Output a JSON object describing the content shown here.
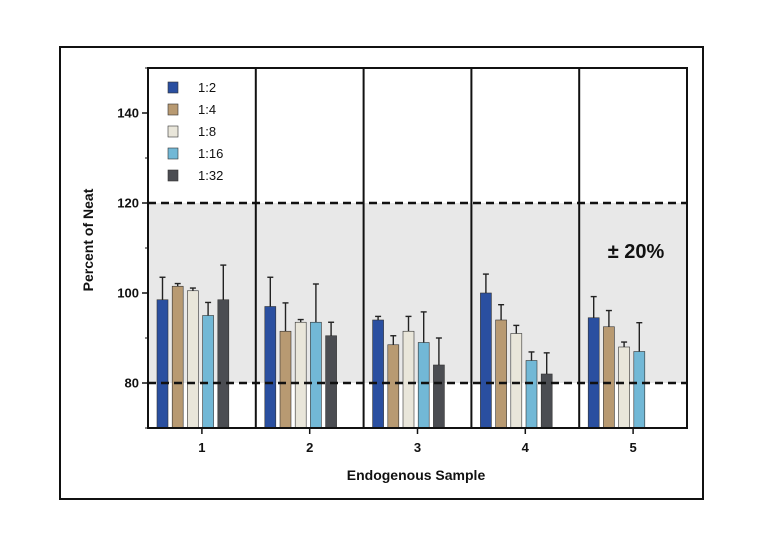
{
  "chart_data": {
    "type": "bar",
    "title": "",
    "xlabel": "Endogenous Sample",
    "ylabel": "Percent of Neat",
    "categories": [
      "1",
      "2",
      "3",
      "4",
      "5"
    ],
    "ylim": [
      70,
      150
    ],
    "yticks": [
      80,
      100,
      120,
      140
    ],
    "grid": false,
    "legend_position": "top-left",
    "band": {
      "low": 80,
      "high": 120,
      "label": "± 20%",
      "color": "#e8e8e8"
    },
    "reference_lines": [
      80,
      120
    ],
    "series": [
      {
        "name": "1:2",
        "color": "#2a4fa0",
        "values": [
          98.5,
          97,
          94,
          100,
          94.5
        ],
        "errors": [
          5,
          6.5,
          0.8,
          4.2,
          4.7
        ]
      },
      {
        "name": "1:4",
        "color": "#b89a72",
        "values": [
          101.5,
          91.5,
          88.5,
          94,
          92.5
        ],
        "errors": [
          0.6,
          6.3,
          2,
          3.4,
          3.6
        ]
      },
      {
        "name": "1:8",
        "color": "#e9e6da",
        "values": [
          100.5,
          93.5,
          91.5,
          91,
          88
        ],
        "errors": [
          0.6,
          0.6,
          3.3,
          1.8,
          1.1
        ]
      },
      {
        "name": "1:16",
        "color": "#72b8d6",
        "values": [
          95,
          93.5,
          89,
          85,
          87
        ],
        "errors": [
          2.9,
          8.5,
          6.8,
          1.9,
          6.4
        ]
      },
      {
        "name": "1:32",
        "color": "#4b4d52",
        "values": [
          98.5,
          90.5,
          84,
          82,
          null
        ],
        "errors": [
          7.7,
          3,
          6,
          4.7,
          null
        ]
      }
    ]
  }
}
